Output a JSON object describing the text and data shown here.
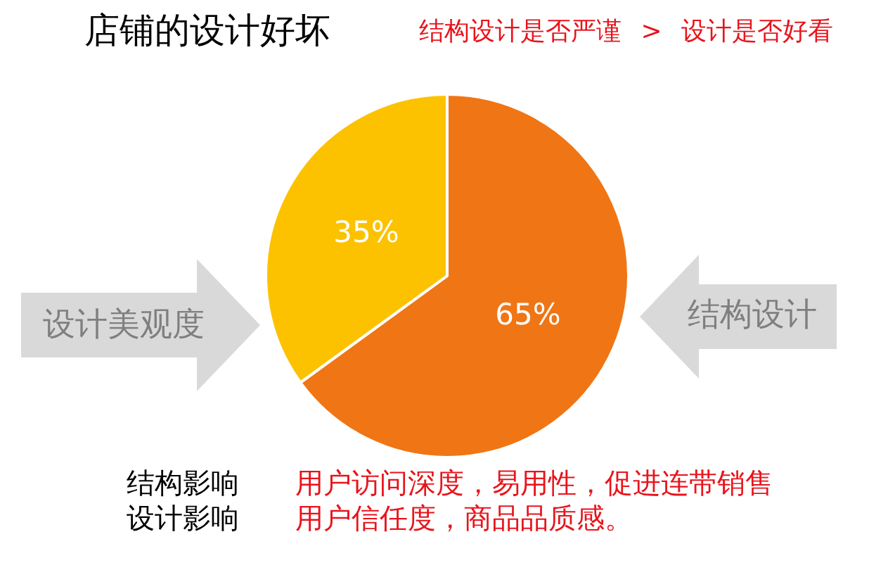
{
  "chart_data": {
    "type": "pie",
    "title": "店铺的设计好坏",
    "subtitle": "结构设计是否严谨 > 设计是否好看",
    "categories": [
      "结构设计",
      "设计美观度"
    ],
    "values": [
      65,
      35
    ],
    "colors": [
      "#f07514",
      "#fcc200"
    ],
    "value_labels": [
      "65%",
      "35%"
    ],
    "annotations": [
      "结构影响",
      "用户访问深度，易用性，促进连带销售",
      "设计影响",
      "用户信任度，商品品质感。"
    ]
  }
}
